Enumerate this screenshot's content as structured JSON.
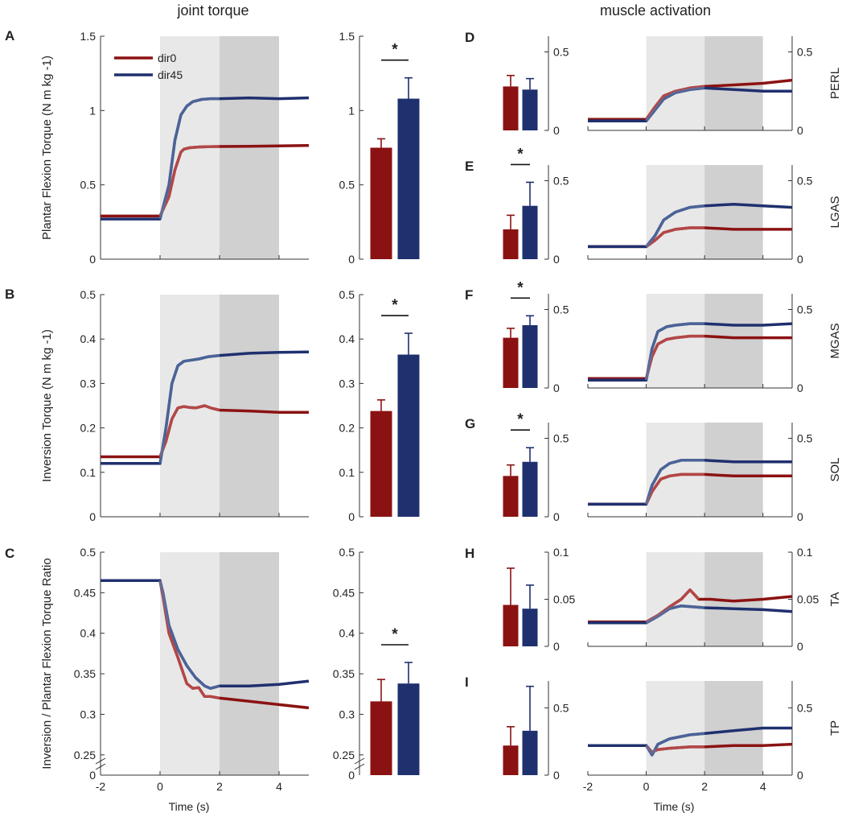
{
  "figure": {
    "title_left": "joint torque",
    "title_right": "muscle activation",
    "xlabel": "Time (s)",
    "colors": {
      "dir0": "#8b1212",
      "dir45": "#1f306e",
      "dir0_early": "#c05a5a",
      "dir45_early": "#5b74a6",
      "shade_light": "#e8e8e8",
      "shade_dark": "#d0d0d0"
    }
  },
  "chart_data": [
    {
      "id": "A",
      "type": "line",
      "ylabel": "Plantar Flexion Torque (N m kg  -1)",
      "xlim": [
        -2,
        5
      ],
      "xticks": [
        -2,
        0,
        2,
        4
      ],
      "ylim": [
        0,
        1.5
      ],
      "yticks": [
        0,
        0.5,
        1,
        1.5
      ],
      "yticklabels": [
        "0",
        "0.5",
        "1",
        "1.5"
      ],
      "shading": [
        [
          0,
          2
        ],
        [
          2,
          4
        ]
      ],
      "legend": [
        "dir0",
        "dir45"
      ],
      "series": [
        {
          "name": "dir0",
          "x": [
            -2,
            0,
            0.3,
            0.5,
            0.7,
            0.8,
            1.0,
            1.3,
            1.6,
            2,
            3,
            4,
            5
          ],
          "y": [
            0.29,
            0.29,
            0.42,
            0.6,
            0.72,
            0.74,
            0.75,
            0.755,
            0.757,
            0.758,
            0.76,
            0.762,
            0.765
          ]
        },
        {
          "name": "dir45",
          "x": [
            -2,
            0,
            0.3,
            0.5,
            0.7,
            0.9,
            1.1,
            1.4,
            1.7,
            2,
            3,
            4,
            5
          ],
          "y": [
            0.27,
            0.27,
            0.5,
            0.8,
            0.97,
            1.03,
            1.06,
            1.075,
            1.08,
            1.08,
            1.085,
            1.08,
            1.085
          ]
        }
      ]
    },
    {
      "id": "A-bar",
      "type": "bar",
      "ylim": [
        0,
        1.5
      ],
      "yticks": [
        0,
        0.5,
        1,
        1.5
      ],
      "yticklabels": [
        "0",
        "0.5",
        "1",
        "1.5"
      ],
      "categories": [
        "dir0",
        "dir45"
      ],
      "values": [
        0.75,
        1.08
      ],
      "errors": [
        0.06,
        0.14
      ],
      "sig": "*"
    },
    {
      "id": "B",
      "type": "line",
      "ylabel": "Inversion Torque (N m kg  -1)",
      "xlim": [
        -2,
        5
      ],
      "xticks": [
        -2,
        0,
        2,
        4
      ],
      "ylim": [
        0,
        0.5
      ],
      "yticks": [
        0,
        0.1,
        0.2,
        0.3,
        0.4,
        0.5
      ],
      "yticklabels": [
        "0",
        "0.1",
        "0.2",
        "0.3",
        "0.4",
        "0.5"
      ],
      "shading": [
        [
          0,
          2
        ],
        [
          2,
          4
        ]
      ],
      "series": [
        {
          "name": "dir0",
          "x": [
            -2,
            0,
            0.2,
            0.4,
            0.6,
            0.8,
            1.0,
            1.2,
            1.5,
            1.7,
            2,
            3,
            4,
            5
          ],
          "y": [
            0.135,
            0.135,
            0.17,
            0.22,
            0.245,
            0.248,
            0.246,
            0.245,
            0.25,
            0.245,
            0.24,
            0.238,
            0.235,
            0.235
          ]
        },
        {
          "name": "dir45",
          "x": [
            -2,
            0,
            0.2,
            0.4,
            0.6,
            0.8,
            1.0,
            1.3,
            1.6,
            2,
            3,
            4,
            5
          ],
          "y": [
            0.12,
            0.12,
            0.2,
            0.3,
            0.34,
            0.35,
            0.352,
            0.355,
            0.36,
            0.363,
            0.368,
            0.37,
            0.371
          ]
        }
      ]
    },
    {
      "id": "B-bar",
      "type": "bar",
      "ylim": [
        0,
        0.5
      ],
      "yticks": [
        0,
        0.1,
        0.2,
        0.3,
        0.4,
        0.5
      ],
      "yticklabels": [
        "0",
        "0.1",
        "0.2",
        "0.3",
        "0.4",
        "0.5"
      ],
      "categories": [
        "dir0",
        "dir45"
      ],
      "values": [
        0.238,
        0.365
      ],
      "errors": [
        0.025,
        0.048
      ],
      "sig": "*"
    },
    {
      "id": "C",
      "type": "line",
      "ylabel": "Inversion / Plantar Flexion Torque Ratio",
      "xlim": [
        -2,
        5
      ],
      "xticks": [
        -2,
        0,
        2,
        4
      ],
      "xticklabels": [
        "-2",
        "0",
        "2",
        "4"
      ],
      "ylim": [
        0.225,
        0.5
      ],
      "yticks": [
        0.25,
        0.3,
        0.35,
        0.4,
        0.45,
        0.5
      ],
      "yticklabels": [
        "0.25",
        "0.3",
        "0.35",
        "0.4",
        "0.45",
        "0.5"
      ],
      "axis_break_label": "0",
      "shading": [
        [
          0,
          2
        ],
        [
          2,
          4
        ]
      ],
      "series": [
        {
          "name": "dir0",
          "x": [
            -2,
            0,
            0.1,
            0.3,
            0.6,
            0.9,
            1.1,
            1.3,
            1.5,
            1.7,
            2,
            3,
            4,
            5
          ],
          "y": [
            0.465,
            0.465,
            0.445,
            0.4,
            0.37,
            0.338,
            0.332,
            0.333,
            0.322,
            0.322,
            0.32,
            0.316,
            0.312,
            0.308
          ]
        },
        {
          "name": "dir45",
          "x": [
            -2,
            0,
            0.1,
            0.3,
            0.6,
            0.9,
            1.2,
            1.5,
            1.7,
            2,
            3,
            4,
            5
          ],
          "y": [
            0.465,
            0.465,
            0.45,
            0.41,
            0.38,
            0.36,
            0.345,
            0.335,
            0.332,
            0.335,
            0.335,
            0.337,
            0.341
          ]
        }
      ]
    },
    {
      "id": "C-bar",
      "type": "bar",
      "ylim": [
        0.225,
        0.5
      ],
      "yticks": [
        0.25,
        0.3,
        0.35,
        0.4,
        0.45,
        0.5
      ],
      "yticklabels": [
        "0.25",
        "0.3",
        "0.35",
        "0.4",
        "0.45",
        "0.5"
      ],
      "axis_break_label": "0",
      "categories": [
        "dir0",
        "dir45"
      ],
      "values": [
        0.316,
        0.338
      ],
      "errors": [
        0.027,
        0.026
      ],
      "sig": "*"
    },
    {
      "id": "D",
      "muscle": "PERL",
      "type": "bar",
      "ylim": [
        0,
        0.6
      ],
      "yticks": [
        0,
        0.5
      ],
      "yticklabels": [
        "0",
        "0.5"
      ],
      "categories": [
        "dir0",
        "dir45"
      ],
      "values": [
        0.28,
        0.26
      ],
      "errors": [
        0.07,
        0.07
      ],
      "sig": ""
    },
    {
      "id": "D-line",
      "muscle": "PERL",
      "type": "line",
      "xlim": [
        -2,
        5
      ],
      "xticks": [
        -2,
        0,
        2,
        4
      ],
      "ylim": [
        0,
        0.6
      ],
      "yticks": [
        0,
        0.5
      ],
      "yticklabels": [
        "0",
        "0.5"
      ],
      "series": [
        {
          "name": "dir0",
          "x": [
            -2,
            0,
            0.3,
            0.6,
            1.0,
            1.5,
            2,
            3,
            4,
            5
          ],
          "y": [
            0.07,
            0.07,
            0.15,
            0.22,
            0.25,
            0.27,
            0.28,
            0.29,
            0.3,
            0.32
          ]
        },
        {
          "name": "dir45",
          "x": [
            -2,
            0,
            0.3,
            0.6,
            1.0,
            1.5,
            2,
            3,
            4,
            5
          ],
          "y": [
            0.06,
            0.06,
            0.13,
            0.2,
            0.24,
            0.26,
            0.27,
            0.26,
            0.25,
            0.25
          ]
        }
      ]
    },
    {
      "id": "E",
      "muscle": "LGAS",
      "type": "bar",
      "ylim": [
        0,
        0.6
      ],
      "yticks": [
        0,
        0.5
      ],
      "yticklabels": [
        "0",
        "0.5"
      ],
      "categories": [
        "dir0",
        "dir45"
      ],
      "values": [
        0.19,
        0.34
      ],
      "errors": [
        0.09,
        0.15
      ],
      "sig": "*"
    },
    {
      "id": "E-line",
      "muscle": "LGAS",
      "type": "line",
      "xlim": [
        -2,
        5
      ],
      "xticks": [
        -2,
        0,
        2,
        4
      ],
      "ylim": [
        0,
        0.6
      ],
      "yticks": [
        0,
        0.5
      ],
      "yticklabels": [
        "0",
        "0.5"
      ],
      "series": [
        {
          "name": "dir0",
          "x": [
            -2,
            0,
            0.3,
            0.6,
            1.0,
            1.5,
            2,
            3,
            4,
            5
          ],
          "y": [
            0.08,
            0.08,
            0.12,
            0.17,
            0.19,
            0.2,
            0.2,
            0.19,
            0.19,
            0.19
          ]
        },
        {
          "name": "dir45",
          "x": [
            -2,
            0,
            0.3,
            0.6,
            1.0,
            1.5,
            2,
            3,
            4,
            5
          ],
          "y": [
            0.08,
            0.08,
            0.15,
            0.25,
            0.3,
            0.33,
            0.34,
            0.35,
            0.34,
            0.33
          ]
        }
      ]
    },
    {
      "id": "F",
      "muscle": "MGAS",
      "type": "bar",
      "ylim": [
        0,
        0.6
      ],
      "yticks": [
        0,
        0.5
      ],
      "yticklabels": [
        "0",
        "0.5"
      ],
      "categories": [
        "dir0",
        "dir45"
      ],
      "values": [
        0.32,
        0.4
      ],
      "errors": [
        0.06,
        0.06
      ],
      "sig": "*"
    },
    {
      "id": "F-line",
      "muscle": "MGAS",
      "type": "line",
      "xlim": [
        -2,
        5
      ],
      "xticks": [
        -2,
        0,
        2,
        4
      ],
      "ylim": [
        0,
        0.6
      ],
      "yticks": [
        0,
        0.5
      ],
      "yticklabels": [
        "0",
        "0.5"
      ],
      "series": [
        {
          "name": "dir0",
          "x": [
            -2,
            0,
            0.2,
            0.4,
            0.7,
            1.0,
            1.5,
            2,
            3,
            4,
            5
          ],
          "y": [
            0.06,
            0.06,
            0.2,
            0.28,
            0.31,
            0.32,
            0.33,
            0.33,
            0.32,
            0.32,
            0.32
          ]
        },
        {
          "name": "dir45",
          "x": [
            -2,
            0,
            0.2,
            0.4,
            0.7,
            1.0,
            1.5,
            2,
            3,
            4,
            5
          ],
          "y": [
            0.05,
            0.05,
            0.25,
            0.36,
            0.39,
            0.4,
            0.41,
            0.41,
            0.4,
            0.4,
            0.41
          ]
        }
      ]
    },
    {
      "id": "G",
      "muscle": "SOL",
      "type": "bar",
      "ylim": [
        0,
        0.6
      ],
      "yticks": [
        0,
        0.5
      ],
      "yticklabels": [
        "0",
        "0.5"
      ],
      "categories": [
        "dir0",
        "dir45"
      ],
      "values": [
        0.26,
        0.35
      ],
      "errors": [
        0.07,
        0.09
      ],
      "sig": "*"
    },
    {
      "id": "G-line",
      "muscle": "SOL",
      "type": "line",
      "xlim": [
        -2,
        5
      ],
      "xticks": [
        -2,
        0,
        2,
        4
      ],
      "ylim": [
        0,
        0.6
      ],
      "yticks": [
        0,
        0.5
      ],
      "yticklabels": [
        "0",
        "0.5"
      ],
      "series": [
        {
          "name": "dir0",
          "x": [
            -2,
            0,
            0.2,
            0.5,
            0.8,
            1.2,
            2,
            3,
            4,
            5
          ],
          "y": [
            0.08,
            0.08,
            0.16,
            0.24,
            0.26,
            0.27,
            0.27,
            0.26,
            0.26,
            0.26
          ]
        },
        {
          "name": "dir45",
          "x": [
            -2,
            0,
            0.2,
            0.5,
            0.8,
            1.2,
            2,
            3,
            4,
            5
          ],
          "y": [
            0.08,
            0.08,
            0.2,
            0.3,
            0.34,
            0.36,
            0.36,
            0.35,
            0.35,
            0.35
          ]
        }
      ]
    },
    {
      "id": "H",
      "muscle": "TA",
      "type": "bar",
      "ylim": [
        0,
        0.1
      ],
      "yticks": [
        0,
        0.05,
        0.1
      ],
      "yticklabels": [
        "0",
        "0.05",
        "0.1"
      ],
      "categories": [
        "dir0",
        "dir45"
      ],
      "values": [
        0.044,
        0.04
      ],
      "errors": [
        0.039,
        0.025
      ],
      "sig": ""
    },
    {
      "id": "H-line",
      "muscle": "TA",
      "type": "line",
      "xlim": [
        -2,
        5
      ],
      "xticks": [
        -2,
        0,
        2,
        4
      ],
      "ylim": [
        0,
        0.1
      ],
      "yticks": [
        0,
        0.05,
        0.1
      ],
      "yticklabels": [
        "0",
        "0.05",
        "0.1"
      ],
      "series": [
        {
          "name": "dir0",
          "x": [
            -2,
            0,
            0.4,
            0.8,
            1.2,
            1.5,
            1.8,
            2.2,
            3,
            4,
            5
          ],
          "y": [
            0.026,
            0.026,
            0.033,
            0.042,
            0.05,
            0.06,
            0.05,
            0.05,
            0.048,
            0.05,
            0.053
          ]
        },
        {
          "name": "dir45",
          "x": [
            -2,
            0,
            0.4,
            0.8,
            1.2,
            1.6,
            2,
            3,
            4,
            5
          ],
          "y": [
            0.025,
            0.025,
            0.032,
            0.04,
            0.043,
            0.042,
            0.041,
            0.04,
            0.039,
            0.037
          ]
        }
      ]
    },
    {
      "id": "I",
      "muscle": "TP",
      "type": "bar",
      "ylim": [
        0,
        0.7
      ],
      "yticks": [
        0,
        0.5
      ],
      "yticklabels": [
        "0",
        "0.5"
      ],
      "categories": [
        "dir0",
        "dir45"
      ],
      "values": [
        0.22,
        0.33
      ],
      "errors": [
        0.14,
        0.33
      ],
      "sig": ""
    },
    {
      "id": "I-line",
      "muscle": "TP",
      "type": "line",
      "xlim": [
        -2,
        5
      ],
      "xticks": [
        -2,
        0,
        2,
        4
      ],
      "xticklabels": [
        "-2",
        "0",
        "2",
        "4"
      ],
      "ylim": [
        0,
        0.7
      ],
      "yticks": [
        0,
        0.5
      ],
      "yticklabels": [
        "0",
        "0.5"
      ],
      "series": [
        {
          "name": "dir0",
          "x": [
            -2,
            0,
            0.2,
            0.4,
            0.8,
            1.5,
            2,
            3,
            4,
            5
          ],
          "y": [
            0.22,
            0.22,
            0.17,
            0.19,
            0.2,
            0.21,
            0.21,
            0.22,
            0.22,
            0.23
          ]
        },
        {
          "name": "dir45",
          "x": [
            -2,
            0,
            0.2,
            0.4,
            0.8,
            1.5,
            2,
            3,
            4,
            5
          ],
          "y": [
            0.22,
            0.22,
            0.15,
            0.23,
            0.27,
            0.3,
            0.31,
            0.33,
            0.35,
            0.35
          ]
        }
      ]
    }
  ]
}
